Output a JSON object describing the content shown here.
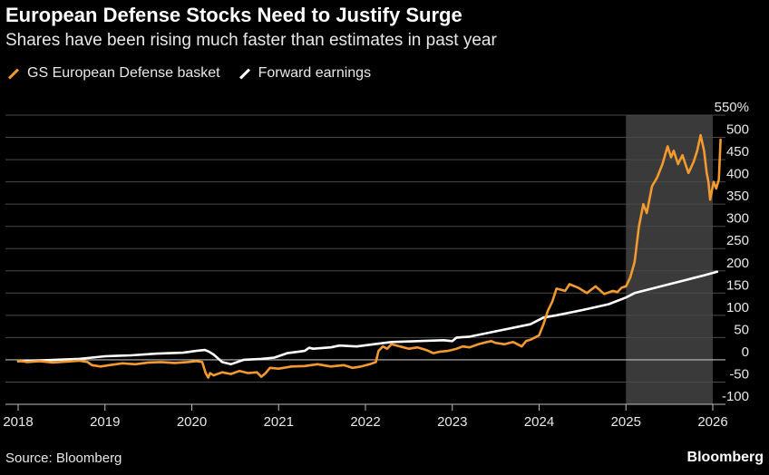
{
  "header": {
    "title": "European Defense Stocks Need to Justify Surge",
    "subtitle": "Shares have been rising much faster than estimates in past year"
  },
  "legend": [
    {
      "label": "GS European Defense basket",
      "color": "#f39a2e"
    },
    {
      "label": "Forward earnings",
      "color": "#ffffff"
    }
  ],
  "footer": {
    "source": "Source: Bloomberg",
    "brand": "Bloomberg"
  },
  "chart_data": {
    "type": "line",
    "ylim": [
      -100,
      550
    ],
    "yticks": [
      {
        "value": 550,
        "label": "550%"
      },
      {
        "value": 500,
        "label": "500"
      },
      {
        "value": 450,
        "label": "450"
      },
      {
        "value": 400,
        "label": "400"
      },
      {
        "value": 350,
        "label": "350"
      },
      {
        "value": 300,
        "label": "300"
      },
      {
        "value": 250,
        "label": "250"
      },
      {
        "value": 200,
        "label": "200"
      },
      {
        "value": 150,
        "label": "150"
      },
      {
        "value": 100,
        "label": "100"
      },
      {
        "value": 50,
        "label": "50"
      },
      {
        "value": 0,
        "label": "0"
      },
      {
        "value": -50,
        "label": "-50"
      },
      {
        "value": -100,
        "label": "-100"
      }
    ],
    "xlim": [
      2018.0,
      2026.2
    ],
    "xticks": [
      {
        "value": 2018,
        "label": "2018"
      },
      {
        "value": 2019,
        "label": "2019"
      },
      {
        "value": 2020,
        "label": "2020"
      },
      {
        "value": 2021,
        "label": "2021"
      },
      {
        "value": 2022,
        "label": "2022"
      },
      {
        "value": 2023,
        "label": "2023"
      },
      {
        "value": 2024,
        "label": "2024"
      },
      {
        "value": 2025,
        "label": "2025"
      },
      {
        "value": 2026,
        "label": "2026"
      }
    ],
    "grid": true,
    "highlight_range": [
      2025.0,
      2026.0
    ],
    "series": [
      {
        "name": "GS European Defense basket",
        "color": "#f39a2e",
        "points": [
          [
            2018.0,
            -2
          ],
          [
            2018.1,
            -5
          ],
          [
            2018.25,
            -3
          ],
          [
            2018.4,
            -6
          ],
          [
            2018.55,
            -4
          ],
          [
            2018.7,
            -2
          ],
          [
            2018.8,
            -5
          ],
          [
            2018.85,
            -12
          ],
          [
            2018.95,
            -15
          ],
          [
            2019.05,
            -12
          ],
          [
            2019.2,
            -8
          ],
          [
            2019.35,
            -10
          ],
          [
            2019.5,
            -6
          ],
          [
            2019.65,
            -5
          ],
          [
            2019.8,
            -7
          ],
          [
            2019.95,
            -5
          ],
          [
            2020.05,
            -3
          ],
          [
            2020.12,
            -5
          ],
          [
            2020.16,
            -30
          ],
          [
            2020.19,
            -40
          ],
          [
            2020.21,
            -30
          ],
          [
            2020.25,
            -35
          ],
          [
            2020.35,
            -28
          ],
          [
            2020.45,
            -32
          ],
          [
            2020.55,
            -25
          ],
          [
            2020.65,
            -30
          ],
          [
            2020.75,
            -28
          ],
          [
            2020.8,
            -38
          ],
          [
            2020.85,
            -30
          ],
          [
            2020.9,
            -18
          ],
          [
            2021.0,
            -20
          ],
          [
            2021.15,
            -15
          ],
          [
            2021.3,
            -14
          ],
          [
            2021.45,
            -10
          ],
          [
            2021.6,
            -15
          ],
          [
            2021.75,
            -12
          ],
          [
            2021.85,
            -18
          ],
          [
            2021.95,
            -15
          ],
          [
            2022.05,
            -10
          ],
          [
            2022.12,
            -5
          ],
          [
            2022.15,
            20
          ],
          [
            2022.2,
            30
          ],
          [
            2022.25,
            25
          ],
          [
            2022.3,
            35
          ],
          [
            2022.4,
            30
          ],
          [
            2022.5,
            25
          ],
          [
            2022.6,
            28
          ],
          [
            2022.7,
            22
          ],
          [
            2022.78,
            15
          ],
          [
            2022.85,
            18
          ],
          [
            2022.95,
            20
          ],
          [
            2023.05,
            25
          ],
          [
            2023.12,
            30
          ],
          [
            2023.2,
            28
          ],
          [
            2023.3,
            35
          ],
          [
            2023.4,
            40
          ],
          [
            2023.45,
            42
          ],
          [
            2023.5,
            38
          ],
          [
            2023.6,
            35
          ],
          [
            2023.7,
            40
          ],
          [
            2023.75,
            35
          ],
          [
            2023.8,
            30
          ],
          [
            2023.85,
            42
          ],
          [
            2023.9,
            45
          ],
          [
            2023.95,
            50
          ],
          [
            2024.0,
            55
          ],
          [
            2024.05,
            80
          ],
          [
            2024.1,
            110
          ],
          [
            2024.15,
            130
          ],
          [
            2024.2,
            160
          ],
          [
            2024.3,
            155
          ],
          [
            2024.35,
            170
          ],
          [
            2024.45,
            162
          ],
          [
            2024.55,
            150
          ],
          [
            2024.65,
            165
          ],
          [
            2024.75,
            148
          ],
          [
            2024.85,
            155
          ],
          [
            2024.9,
            152
          ],
          [
            2024.95,
            162
          ],
          [
            2025.0,
            165
          ],
          [
            2025.05,
            185
          ],
          [
            2025.1,
            220
          ],
          [
            2025.15,
            300
          ],
          [
            2025.2,
            350
          ],
          [
            2025.24,
            330
          ],
          [
            2025.3,
            390
          ],
          [
            2025.36,
            410
          ],
          [
            2025.42,
            440
          ],
          [
            2025.48,
            480
          ],
          [
            2025.52,
            455
          ],
          [
            2025.55,
            470
          ],
          [
            2025.6,
            440
          ],
          [
            2025.65,
            460
          ],
          [
            2025.72,
            420
          ],
          [
            2025.78,
            445
          ],
          [
            2025.82,
            470
          ],
          [
            2025.86,
            505
          ],
          [
            2025.9,
            470
          ],
          [
            2025.93,
            420
          ],
          [
            2025.95,
            400
          ],
          [
            2025.97,
            360
          ],
          [
            2025.99,
            380
          ],
          [
            2026.01,
            400
          ],
          [
            2026.04,
            385
          ],
          [
            2026.07,
            405
          ],
          [
            2026.09,
            495
          ]
        ]
      },
      {
        "name": "Forward earnings",
        "color": "#ffffff",
        "points": [
          [
            2018.0,
            -3
          ],
          [
            2018.3,
            -1
          ],
          [
            2018.7,
            2
          ],
          [
            2018.85,
            5
          ],
          [
            2019.0,
            8
          ],
          [
            2019.3,
            10
          ],
          [
            2019.6,
            14
          ],
          [
            2019.9,
            16
          ],
          [
            2020.05,
            20
          ],
          [
            2020.15,
            22
          ],
          [
            2020.2,
            18
          ],
          [
            2020.25,
            12
          ],
          [
            2020.35,
            -5
          ],
          [
            2020.45,
            -10
          ],
          [
            2020.6,
            0
          ],
          [
            2020.8,
            2
          ],
          [
            2020.95,
            5
          ],
          [
            2021.1,
            15
          ],
          [
            2021.3,
            20
          ],
          [
            2021.35,
            27
          ],
          [
            2021.4,
            25
          ],
          [
            2021.6,
            28
          ],
          [
            2021.7,
            32
          ],
          [
            2021.9,
            30
          ],
          [
            2022.1,
            35
          ],
          [
            2022.3,
            40
          ],
          [
            2022.6,
            42
          ],
          [
            2022.9,
            44
          ],
          [
            2023.0,
            42
          ],
          [
            2023.05,
            50
          ],
          [
            2023.2,
            52
          ],
          [
            2023.5,
            64
          ],
          [
            2023.9,
            80
          ],
          [
            2024.05,
            95
          ],
          [
            2024.2,
            100
          ],
          [
            2024.5,
            112
          ],
          [
            2024.8,
            125
          ],
          [
            2025.0,
            140
          ],
          [
            2025.1,
            150
          ],
          [
            2025.3,
            160
          ],
          [
            2025.5,
            170
          ],
          [
            2025.7,
            180
          ],
          [
            2025.9,
            190
          ],
          [
            2026.05,
            198
          ]
        ]
      }
    ]
  }
}
